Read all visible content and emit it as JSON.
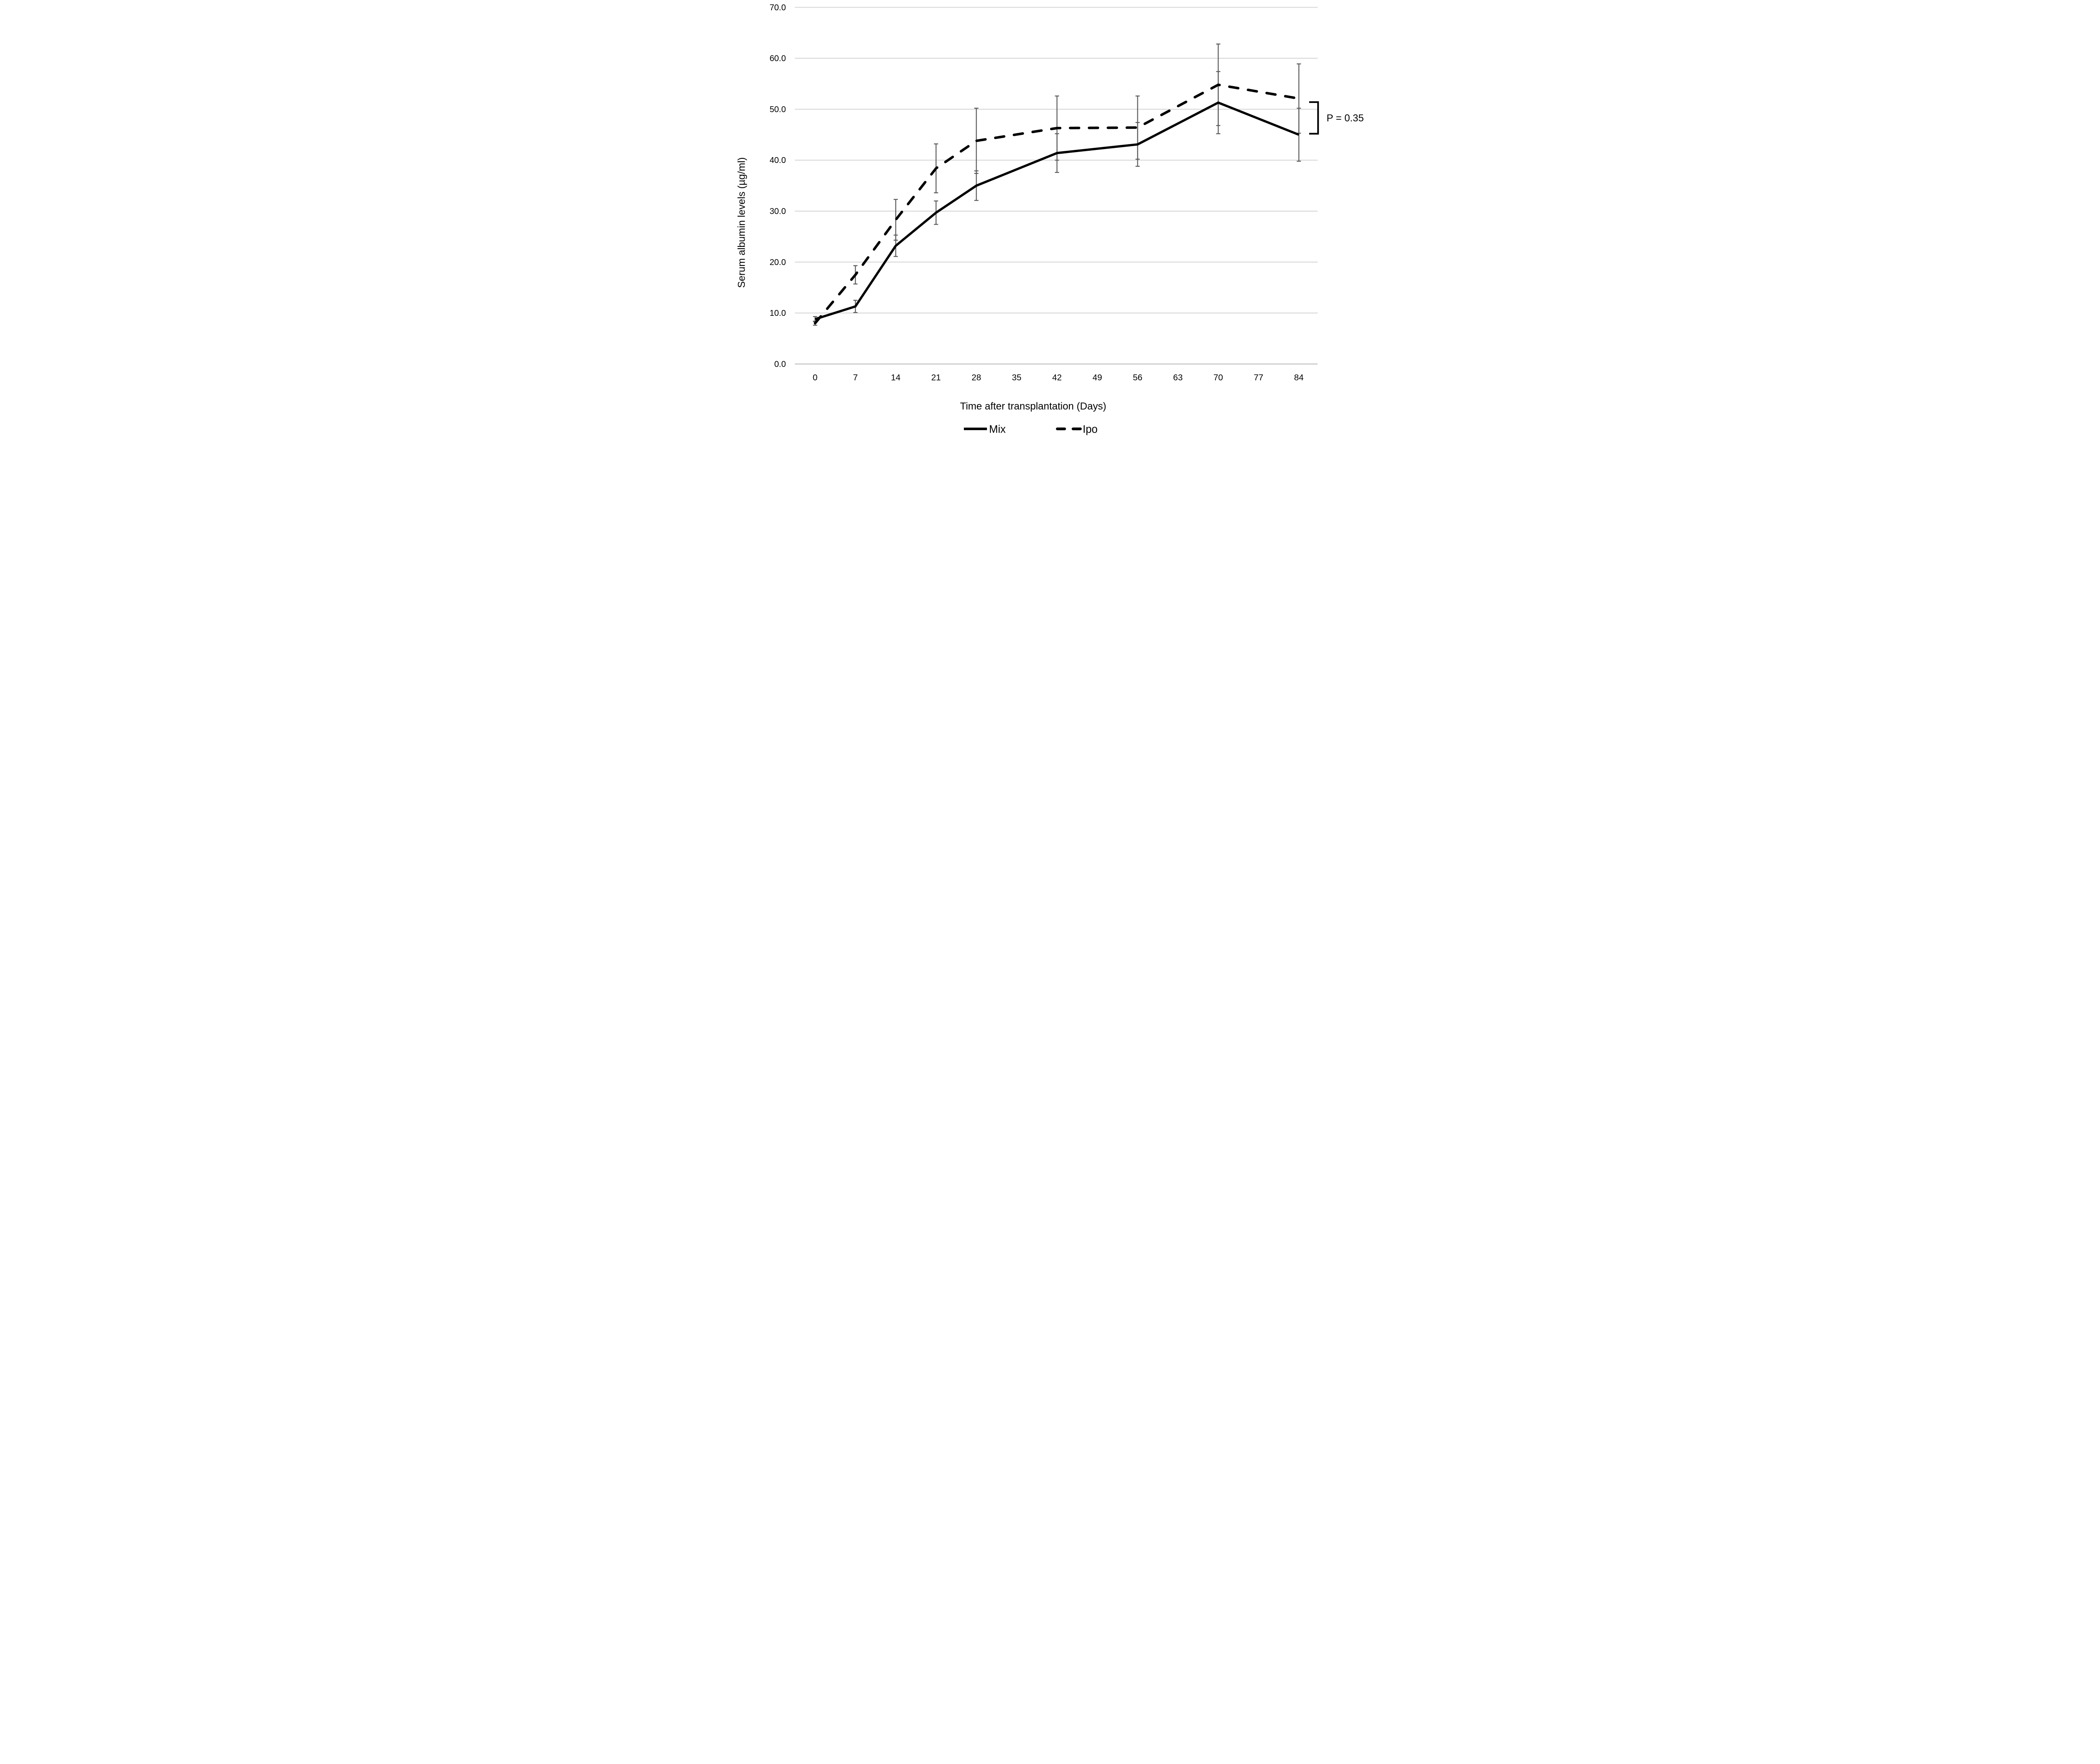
{
  "chart_data": {
    "type": "line",
    "title": "",
    "xlabel": "Time after transplantation (Days)",
    "ylabel": "Serum albumin levels (µg/ml)",
    "x_ticks": [
      0,
      7,
      14,
      21,
      28,
      35,
      42,
      49,
      56,
      63,
      70,
      77,
      84
    ],
    "y_ticks": [
      0,
      10,
      20,
      30,
      40,
      50,
      60,
      70
    ],
    "y_tick_labels": [
      "0.0",
      "10.0",
      "20.0",
      "30.0",
      "40.0",
      "50.0",
      "60.0",
      "70.0"
    ],
    "xlim": [
      -3.5,
      87.5
    ],
    "ylim": [
      0,
      70
    ],
    "grid": "horizontal",
    "legend_position": "bottom-center",
    "x": [
      0,
      7,
      14,
      21,
      28,
      42,
      56,
      70,
      84
    ],
    "series": [
      {
        "name": "Mix",
        "style": "solid",
        "color": "#000000",
        "values": [
          8.8,
          11.3,
          23.2,
          29.7,
          35.0,
          41.4,
          43.1,
          51.3,
          45.0
        ],
        "errors": [
          0.5,
          1.2,
          2.1,
          2.3,
          2.9,
          3.8,
          4.3,
          6.1,
          5.2
        ]
      },
      {
        "name": "Ipo",
        "style": "dashed",
        "color": "#000000",
        "values": [
          8.0,
          17.5,
          28.3,
          38.4,
          43.8,
          46.3,
          46.4,
          54.8,
          52.1
        ],
        "errors": [
          0.4,
          1.8,
          4.0,
          4.8,
          6.4,
          6.3,
          6.2,
          8.0,
          6.8
        ]
      }
    ],
    "error_bar_color": "#595959",
    "annotation": {
      "text": "P = 0.35",
      "bracket_values": [
        45.2,
        51.4
      ],
      "at_x": 84
    }
  }
}
